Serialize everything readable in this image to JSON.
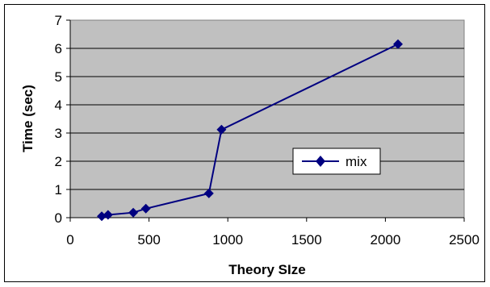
{
  "chart_data": {
    "type": "line",
    "title": "",
    "xlabel": "Theory SIze",
    "ylabel": "Time (sec)",
    "xlim": [
      0,
      2500
    ],
    "ylim": [
      0,
      7
    ],
    "x_ticks": [
      "0",
      "500",
      "1000",
      "1500",
      "2000",
      "2500"
    ],
    "y_ticks": [
      "0",
      "1",
      "2",
      "3",
      "4",
      "5",
      "6",
      "7"
    ],
    "grid": "horizontal",
    "legend": "center-right, inside plot",
    "plot_background": "#c0c0c0",
    "series": [
      {
        "name": "mix",
        "color": "#000080",
        "marker": "diamond",
        "x": [
          200,
          240,
          400,
          480,
          880,
          960,
          2080
        ],
        "y": [
          0.05,
          0.1,
          0.18,
          0.32,
          0.86,
          3.12,
          6.15
        ]
      }
    ]
  }
}
